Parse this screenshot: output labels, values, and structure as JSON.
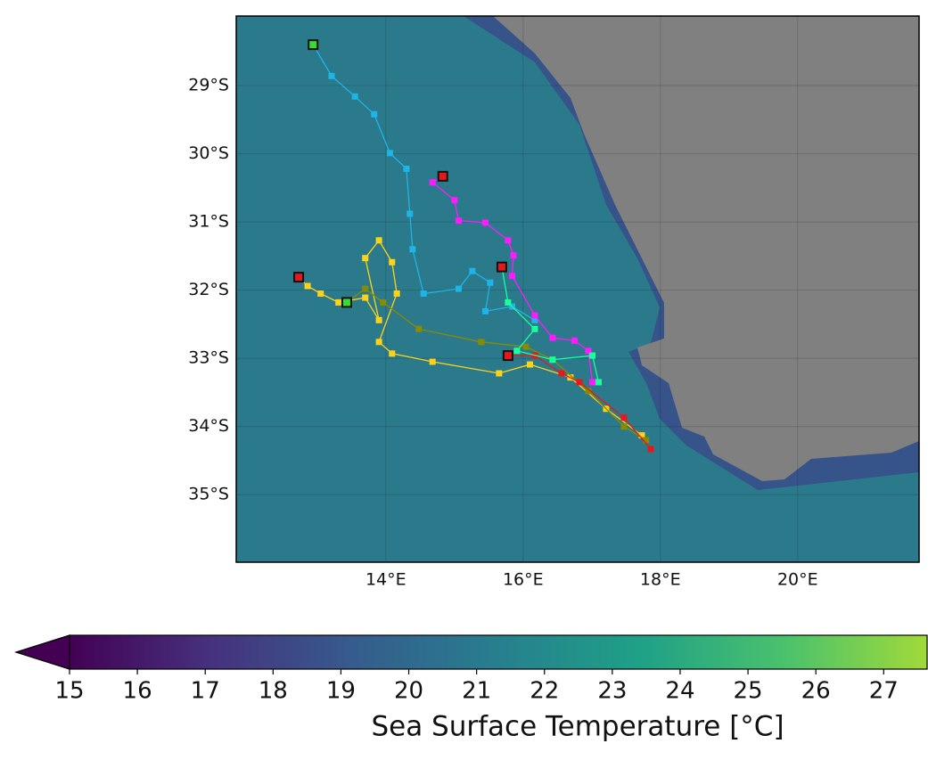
{
  "chart_data": {
    "type": "map",
    "lon_lim": [
      11.82,
      21.77
    ],
    "lat_lim": [
      -35.99,
      -27.98
    ],
    "lon_ticks": [
      {
        "value": 14,
        "label": "14°E"
      },
      {
        "value": 16,
        "label": "16°E"
      },
      {
        "value": 18,
        "label": "18°E"
      },
      {
        "value": 20,
        "label": "20°E"
      }
    ],
    "lat_ticks": [
      {
        "value": -29,
        "label": "29°S"
      },
      {
        "value": -30,
        "label": "30°S"
      },
      {
        "value": -31,
        "label": "31°S"
      },
      {
        "value": -32,
        "label": "32°S"
      },
      {
        "value": -33,
        "label": "33°S"
      },
      {
        "value": -34,
        "label": "34°S"
      },
      {
        "value": -35,
        "label": "35°S"
      }
    ],
    "colorbar": {
      "label": "Sea Surface Temperature [°C]",
      "clim": [
        15,
        27.64
      ],
      "ticks": [
        15,
        16,
        17,
        18,
        19,
        20,
        21,
        22,
        23,
        24,
        25,
        26,
        27
      ],
      "colormap": [
        "#440154",
        "#46327e",
        "#365c8d",
        "#277f8e",
        "#1fa187",
        "#4ac16d",
        "#a0da39"
      ],
      "extend": "min"
    },
    "tracks": [
      {
        "color": "#1fb4e6",
        "start_color": "#33dd33",
        "lon": [
          12.94,
          13.21,
          13.55,
          13.83,
          14.06,
          14.3,
          14.35,
          14.39,
          14.55,
          15.06,
          15.26,
          15.52,
          15.45,
          15.84,
          16.17
        ],
        "lat": [
          -28.4,
          -28.86,
          -29.16,
          -29.42,
          -29.99,
          -30.22,
          -30.88,
          -31.4,
          -32.05,
          -31.98,
          -31.72,
          -31.89,
          -32.31,
          -32.24,
          -32.44
        ]
      },
      {
        "color": "#ff1aff",
        "start_color": "#e8181a",
        "lon": [
          14.83,
          14.68,
          15.0,
          15.06,
          15.45,
          15.78,
          15.86,
          15.84,
          16.17,
          16.43,
          16.75,
          16.95,
          17.01
        ],
        "lat": [
          -30.33,
          -30.42,
          -30.68,
          -30.98,
          -31.01,
          -31.27,
          -31.49,
          -31.79,
          -32.37,
          -32.7,
          -32.74,
          -32.89,
          -33.35
        ]
      },
      {
        "color": "#ffd21a",
        "start_color": "#e8181a",
        "lon": [
          12.73,
          12.86,
          13.05,
          13.31,
          13.7,
          13.9,
          13.7,
          13.9,
          14.09,
          14.16,
          13.9,
          14.09,
          14.68,
          15.65,
          16.1,
          16.69,
          17.21,
          17.73
        ],
        "lat": [
          -31.81,
          -31.94,
          -32.05,
          -32.18,
          -32.11,
          -32.44,
          -31.53,
          -31.27,
          -31.59,
          -32.05,
          -32.76,
          -32.93,
          -33.05,
          -33.22,
          -33.09,
          -33.28,
          -33.74,
          -34.13
        ]
      },
      {
        "color": "#8a8a00",
        "start_color": "#33dd33",
        "lon": [
          13.43,
          13.7,
          13.96,
          14.48,
          15.39,
          16.04,
          16.43,
          16.95,
          17.47,
          17.79
        ],
        "lat": [
          -32.18,
          -31.98,
          -32.18,
          -32.57,
          -32.76,
          -32.83,
          -33.02,
          -33.48,
          -34.0,
          -34.2
        ]
      },
      {
        "color": "#e8181a",
        "start_color": "#e8181a",
        "lon": [
          15.78,
          16.17,
          16.56,
          16.82,
          17.47,
          17.86
        ],
        "lat": [
          -32.96,
          -32.96,
          -33.22,
          -33.35,
          -33.87,
          -34.33
        ]
      },
      {
        "color": "#1aff9c",
        "start_color": "#e8181a",
        "lon": [
          15.69,
          15.78,
          16.17,
          15.91,
          16.43,
          17.01,
          17.1
        ],
        "lat": [
          -31.66,
          -32.18,
          -32.57,
          -32.89,
          -33.02,
          -32.96,
          -33.35
        ]
      }
    ]
  }
}
